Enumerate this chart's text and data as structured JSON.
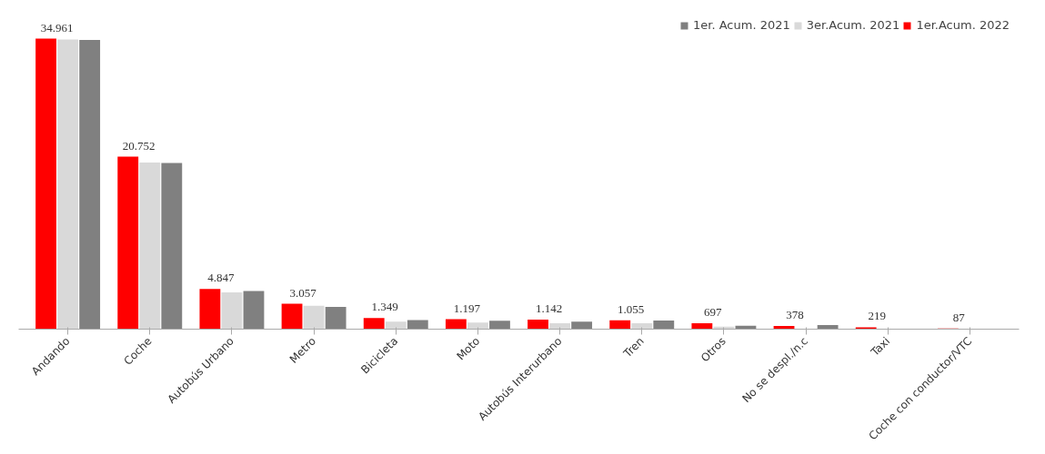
{
  "chart_data": {
    "type": "bar",
    "categories": [
      "Andando",
      "Coche",
      "Autobús Urbano",
      "Metro",
      "Bicicleta",
      "Moto",
      "Autobús Interurbano",
      "Tren",
      "Otros",
      "No se despl./n.c",
      "Taxi",
      "Coche con conductor/VTC"
    ],
    "series": [
      {
        "name": "1er. Acum. 2021",
        "color": "#808080",
        "values": [
          34790,
          20000,
          4580,
          2680,
          1100,
          1000,
          900,
          1050,
          400,
          500,
          null,
          null
        ]
      },
      {
        "name": "3er.Acum. 2021",
        "color": "#d9d9d9",
        "values": [
          34840,
          20040,
          4420,
          2800,
          900,
          800,
          700,
          700,
          300,
          null,
          null,
          null
        ]
      },
      {
        "name": "1er.Acum. 2022",
        "color": "#ff0000",
        "values": [
          34961,
          20752,
          4847,
          3057,
          1349,
          1197,
          1142,
          1055,
          697,
          378,
          219,
          87
        ],
        "value_labels": [
          "34.961",
          "20.752",
          "4.847",
          "3.057",
          "1.349",
          "1.197",
          "1.142",
          "1.055",
          "697",
          "378",
          "219",
          "87"
        ]
      }
    ],
    "legend": "top right",
    "grid": false,
    "tick_labels": "x"
  }
}
